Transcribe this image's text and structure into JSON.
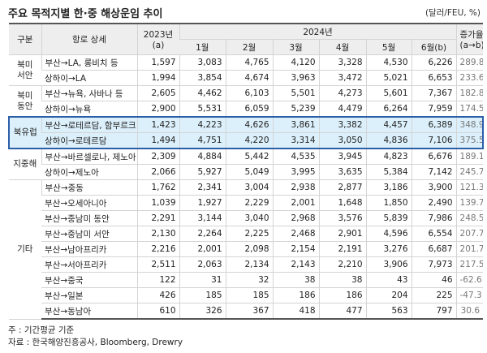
{
  "header": {
    "title": "주요 목적지별 한·중 해상운임 추이",
    "unit": "(달러/FEU, %)"
  },
  "table": {
    "columns": {
      "group": "구분",
      "route": "항로 상세",
      "base_year": "2023년",
      "base_note": "(a)",
      "year": "2024년",
      "months": [
        "1월",
        "2월",
        "3월",
        "4월",
        "5월",
        "6월(b)"
      ],
      "rate": "증가율",
      "rate_note": "(a→b)"
    },
    "groups": [
      {
        "name": "북미 서안",
        "rows": [
          [
            "부산→LA, 롱비치 등",
            "1,597",
            "3,083",
            "4,765",
            "4,120",
            "3,328",
            "4,530",
            "6,226",
            "289.8"
          ],
          [
            "상하이→LA",
            "1,994",
            "3,854",
            "4,674",
            "3,963",
            "3,472",
            "5,021",
            "6,653",
            "233.6"
          ]
        ]
      },
      {
        "name": "북미 동안",
        "rows": [
          [
            "부산→뉴욕, 사바나 등",
            "2,605",
            "4,462",
            "6,103",
            "5,501",
            "4,273",
            "5,601",
            "7,367",
            "182.8"
          ],
          [
            "상하이→뉴욕",
            "2,900",
            "5,531",
            "6,059",
            "5,239",
            "4,479",
            "6,264",
            "7,959",
            "174.5"
          ]
        ]
      },
      {
        "name": "북유럽",
        "rows": [
          [
            "부산→로테르담, 함부르크 등",
            "1,423",
            "4,223",
            "4,626",
            "3,861",
            "3,382",
            "4,457",
            "6,389",
            "348.9"
          ],
          [
            "상하이→로테르담",
            "1,494",
            "4,751",
            "4,220",
            "3,314",
            "3,050",
            "4,836",
            "7,106",
            "375.5"
          ]
        ]
      },
      {
        "name": "지중해",
        "rows": [
          [
            "부산→바르셀로나, 제노아 등",
            "2,309",
            "4,884",
            "5,442",
            "4,535",
            "3,945",
            "4,823",
            "6,676",
            "189.1"
          ],
          [
            "상하이→제노아",
            "2,066",
            "5,927",
            "5,049",
            "3,995",
            "3,635",
            "5,384",
            "7,142",
            "245.7"
          ]
        ]
      },
      {
        "name": "기타",
        "rows": [
          [
            "부산→중동",
            "1,762",
            "2,341",
            "3,004",
            "2,938",
            "2,877",
            "3,186",
            "3,900",
            "121.3"
          ],
          [
            "부산→오세아니아",
            "1,039",
            "1,927",
            "2,229",
            "2,001",
            "1,648",
            "1,850",
            "2,490",
            "139.7"
          ],
          [
            "부산→중남미 동안",
            "2,291",
            "3,144",
            "3,040",
            "2,968",
            "3,576",
            "5,839",
            "7,986",
            "248.5"
          ],
          [
            "부산→중남미 서안",
            "2,130",
            "2,264",
            "2,225",
            "2,468",
            "2,901",
            "4,596",
            "6,554",
            "207.7"
          ],
          [
            "부산→남아프리카",
            "2,216",
            "2,001",
            "2,098",
            "2,154",
            "2,191",
            "3,276",
            "6,687",
            "201.7"
          ],
          [
            "부산→서아프리카",
            "2,511",
            "2,063",
            "2,134",
            "2,143",
            "2,210",
            "3,906",
            "7,973",
            "217.5"
          ],
          [
            "부산→중국",
            "122",
            "31",
            "32",
            "38",
            "38",
            "43",
            "46",
            "-62.6"
          ],
          [
            "부산→일본",
            "426",
            "185",
            "185",
            "186",
            "186",
            "204",
            "225",
            "-47.3"
          ],
          [
            "부산→동남아",
            "610",
            "326",
            "367",
            "418",
            "477",
            "563",
            "797",
            "30.6"
          ]
        ]
      }
    ],
    "highlight_group": 2
  },
  "notes": [
    "주 : 기간평균 기준",
    "자료 : 한국해양진흥공사, Bloomberg, Drewry"
  ]
}
